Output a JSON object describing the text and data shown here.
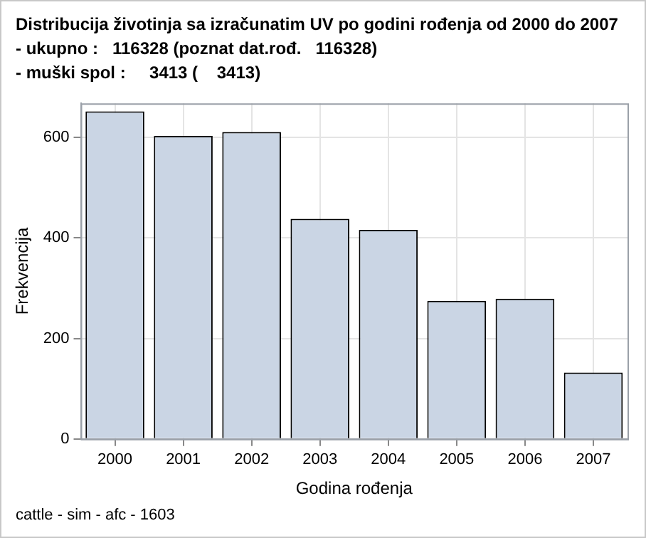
{
  "chart_data": {
    "type": "bar",
    "title": "Distribucija životinja sa izračunatim UV po godini rođenja od 2000 do 2007",
    "subtitle": "- ukupno :   116328 (poznat dat.rođ.   116328)\n- muški spol :     3413 (    3413)",
    "xlabel": "Godina rođenja",
    "ylabel": "Frekvencija",
    "categories": [
      "2000",
      "2001",
      "2002",
      "2003",
      "2004",
      "2005",
      "2006",
      "2007"
    ],
    "values": [
      652,
      603,
      611,
      438,
      416,
      275,
      279,
      132
    ],
    "color": "#cad5e4",
    "ylim": [
      0,
      668
    ],
    "yticks": [
      0,
      200,
      400,
      600
    ],
    "grid": true,
    "annotations": [
      "cattle - sim - afc - 1603"
    ]
  }
}
